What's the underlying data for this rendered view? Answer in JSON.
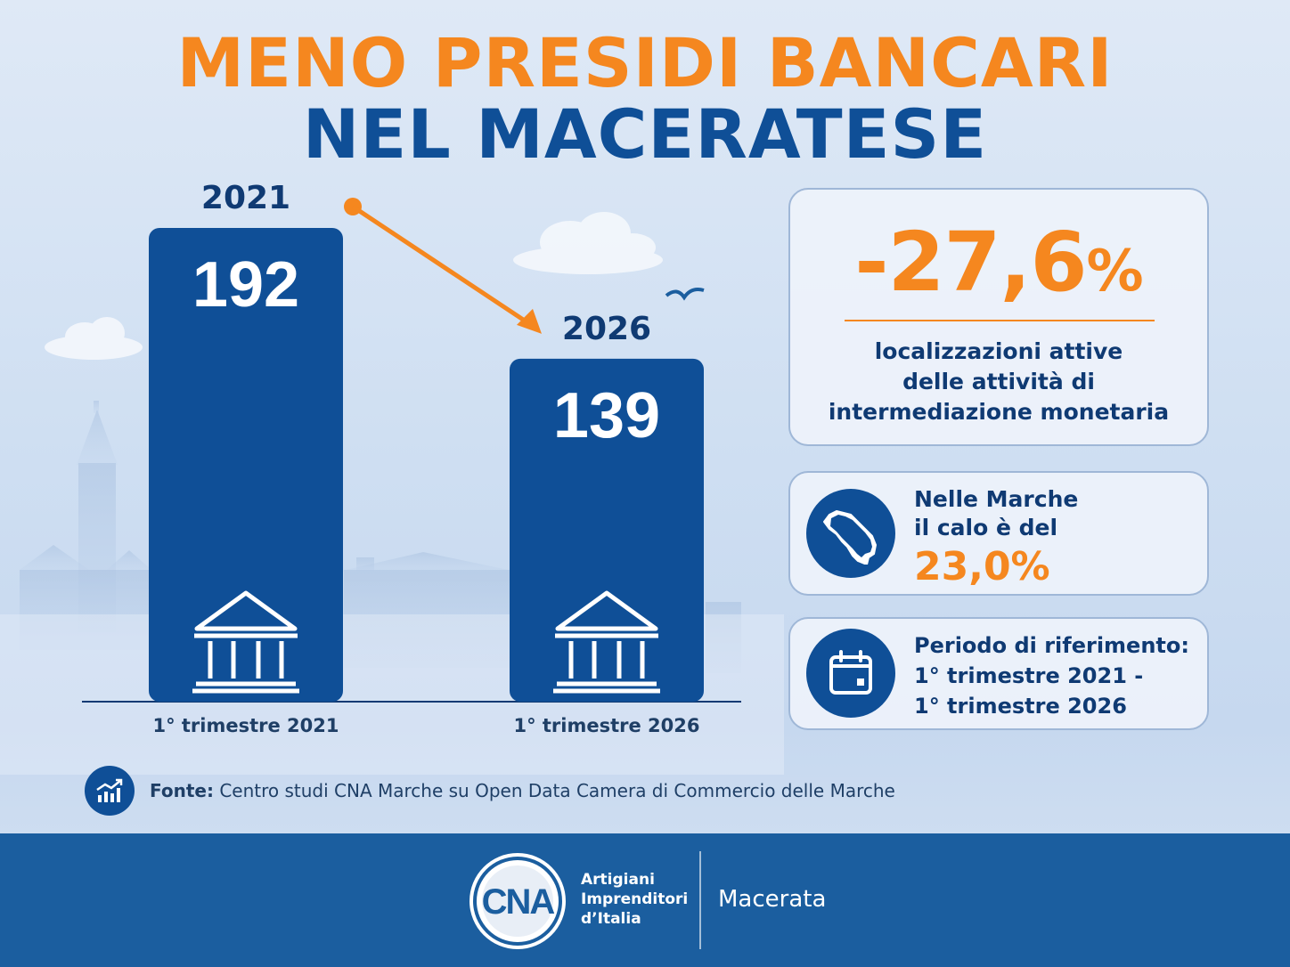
{
  "title": {
    "line1": "MENO PRESIDI BANCARI",
    "line2": "NEL MACERATESE"
  },
  "chart_data": {
    "type": "bar",
    "categories": [
      "1° trimestre 2021",
      "1° trimestre 2026"
    ],
    "bar_top_labels": [
      "2021",
      "2026"
    ],
    "values": [
      192,
      139
    ],
    "value_labels": [
      "192",
      "139"
    ],
    "title": "MENO PRESIDI BANCARI NEL MACERATESE",
    "xlabel": "",
    "ylabel": "",
    "ylim": [
      0,
      200
    ],
    "grid": false,
    "bar_color": "#0f4f97",
    "icon": "bank-building-icon"
  },
  "highlight": {
    "value": "-27,6",
    "unit": "%",
    "description_lines": [
      "localizzazioni attive",
      "delle attività di",
      "intermediazione monetaria"
    ]
  },
  "marche": {
    "icon": "marche-region-map-icon",
    "line1": "Nelle Marche",
    "line2": "il calo è del",
    "value": "23,0%"
  },
  "period": {
    "icon": "calendar-icon",
    "line1": "Periodo di riferimento:",
    "line2": "1° trimestre 2021 -",
    "line3": "1° trimestre 2026"
  },
  "source": {
    "icon": "chart-growth-icon",
    "label": "Fonte:",
    "text": "Centro studi CNA Marche su Open Data Camera di Commercio delle Marche"
  },
  "footer": {
    "logo_text": "CNA",
    "tagline": [
      "Artigiani",
      "Imprenditori",
      "d’Italia"
    ],
    "city": "Macerata"
  },
  "colors": {
    "orange": "#f5871f",
    "blue": "#0f4f97",
    "dark_blue": "#0f3a73",
    "footer_blue": "#1b5e9f"
  }
}
